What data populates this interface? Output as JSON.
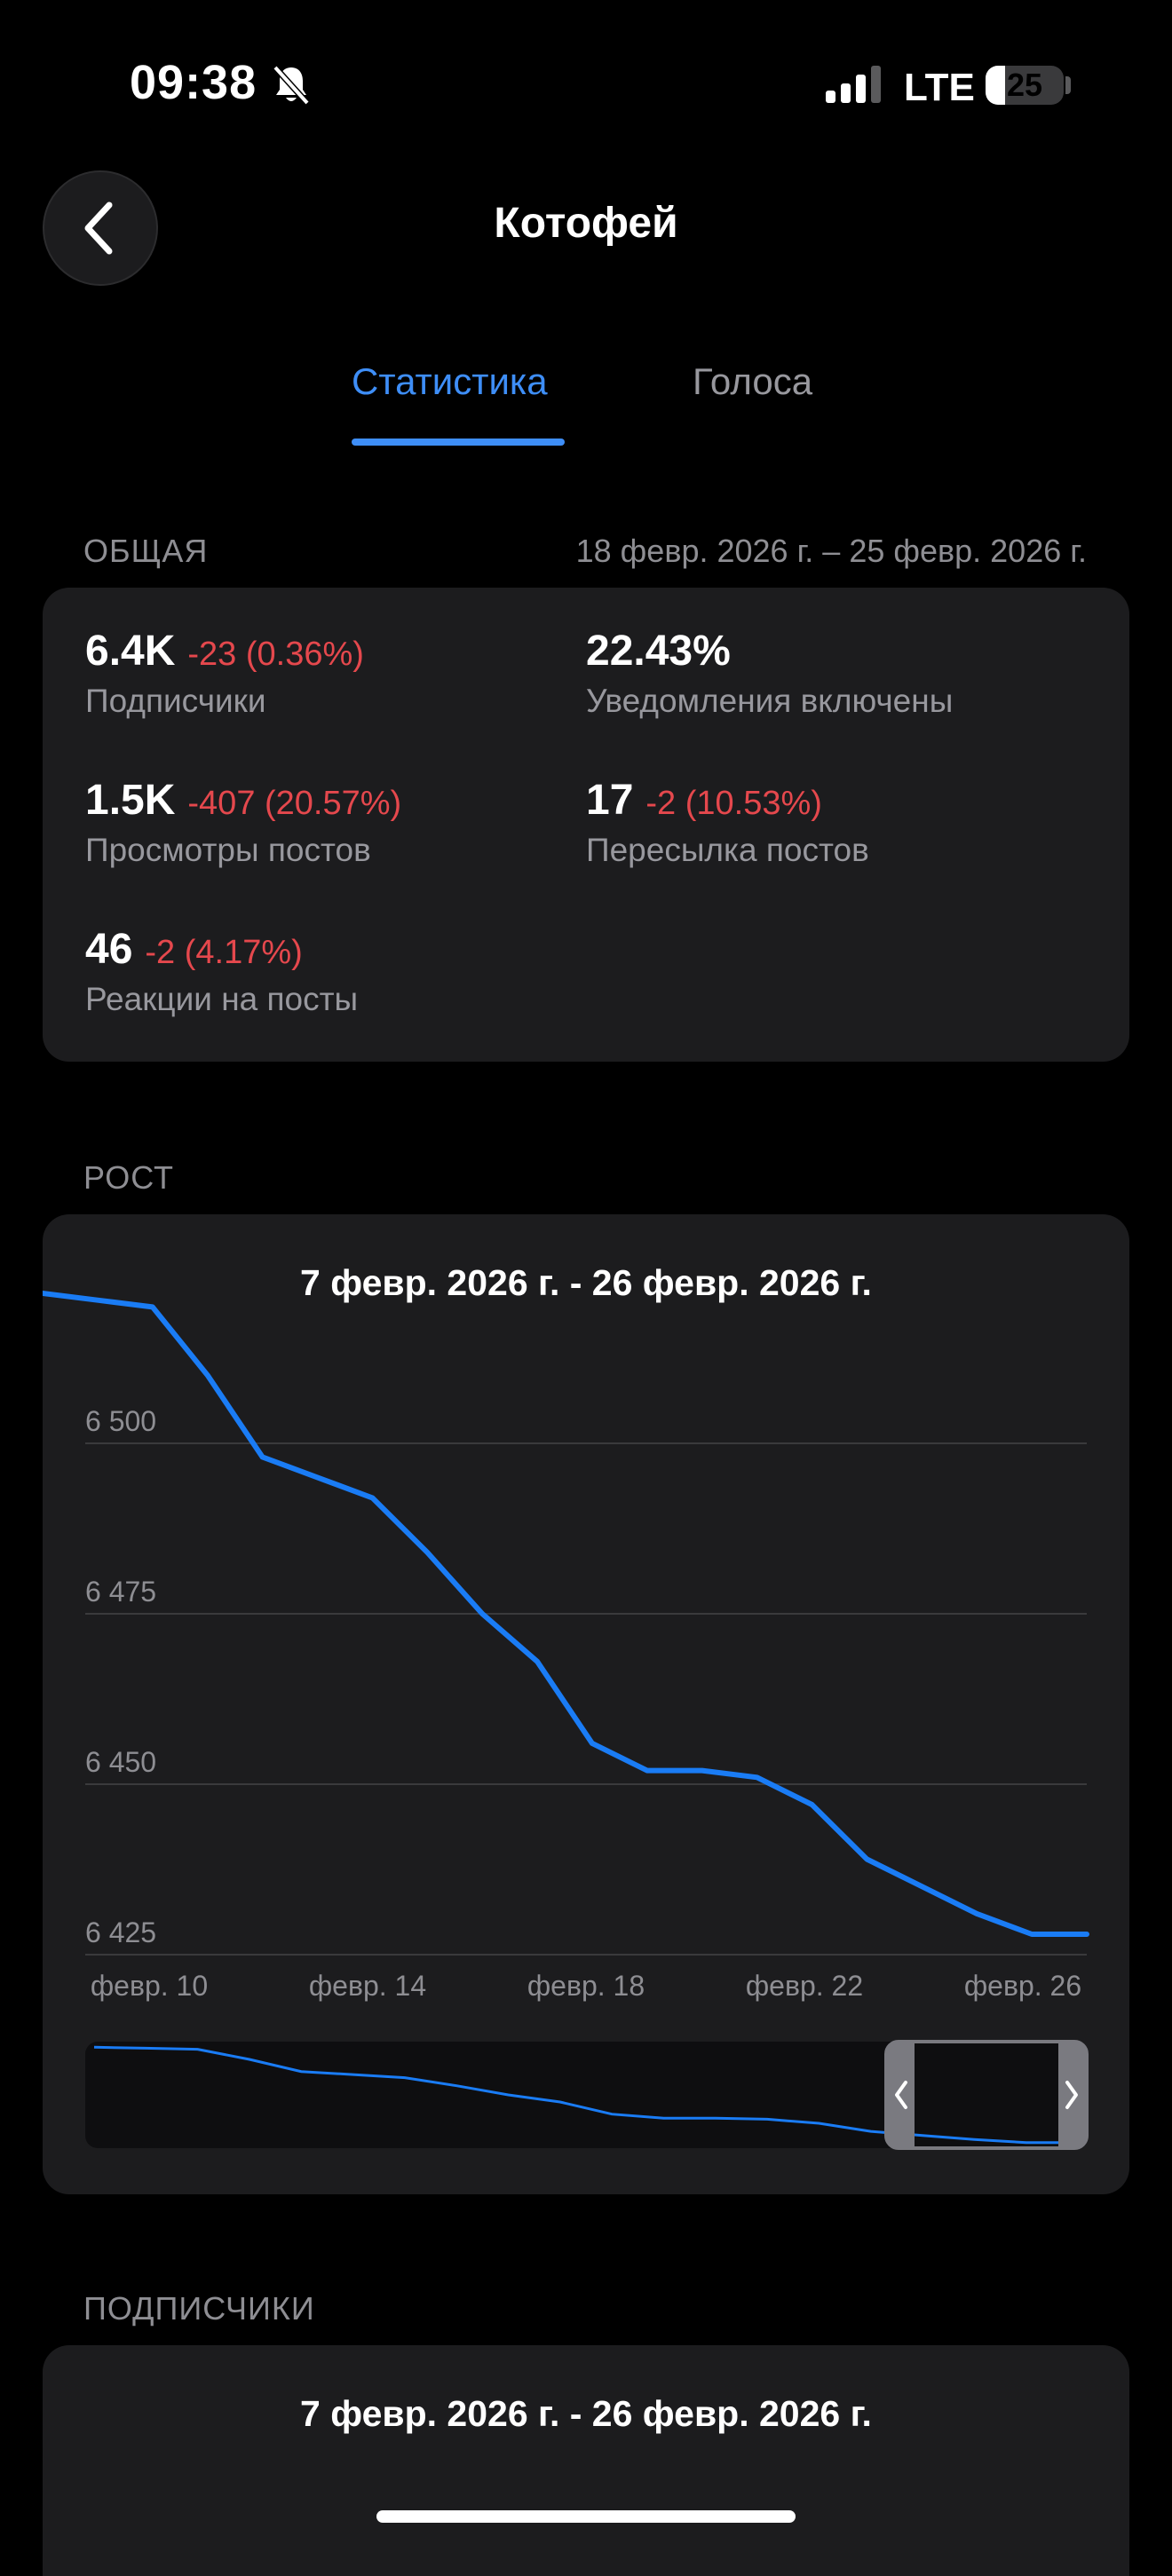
{
  "status_bar": {
    "time": "09:38",
    "network": "LTE",
    "battery": "25",
    "battery_level": 0.25
  },
  "header": {
    "title": "Котофей"
  },
  "tabs": [
    {
      "label": "Статистика",
      "active": true
    },
    {
      "label": "Голоса",
      "active": false
    }
  ],
  "overview": {
    "label": "ОБЩАЯ",
    "date_range": "18 февр. 2026 г. – 25 февр. 2026 г.",
    "metrics": [
      {
        "value": "6.4K",
        "delta": "-23 (0.36%)",
        "label": "Подписчики"
      },
      {
        "value": "22.43%",
        "delta": "",
        "label": "Уведомления включены"
      },
      {
        "value": "1.5K",
        "delta": "-407 (20.57%)",
        "label": "Просмотры постов"
      },
      {
        "value": "17",
        "delta": "-2 (10.53%)",
        "label": "Пересылка постов"
      },
      {
        "value": "46",
        "delta": "-2 (4.17%)",
        "label": "Реакции на посты"
      }
    ]
  },
  "growth": {
    "label": "РОСТ",
    "chart_title": "7 февр. 2026 г. - 26 февр. 2026 г."
  },
  "chart_data": {
    "type": "line",
    "title": "7 февр. 2026 г. - 26 февр. 2026 г.",
    "x": [
      "2026-02-07",
      "2026-02-08",
      "2026-02-09",
      "2026-02-10",
      "2026-02-11",
      "2026-02-12",
      "2026-02-13",
      "2026-02-14",
      "2026-02-15",
      "2026-02-16",
      "2026-02-17",
      "2026-02-18",
      "2026-02-19",
      "2026-02-20",
      "2026-02-21",
      "2026-02-22",
      "2026-02-23",
      "2026-02-24",
      "2026-02-25",
      "2026-02-26"
    ],
    "series": [
      {
        "values": [
          6522,
          6521,
          6520,
          6510,
          6498,
          6495,
          6492,
          6484,
          6475,
          6468,
          6456,
          6452,
          6452,
          6451,
          6447,
          6439,
          6435,
          6431,
          6428,
          6428
        ]
      }
    ],
    "y_ticks": [
      "6 500",
      "6 475",
      "6 450",
      "6 425"
    ],
    "y_tick_values": [
      6500,
      6475,
      6450,
      6425
    ],
    "x_ticks": [
      "февр. 10",
      "февр. 14",
      "февр. 18",
      "февр. 22",
      "февр. 26"
    ],
    "ylim": [
      6425,
      6525
    ],
    "grid": true,
    "line_color": "#1a7cf5"
  },
  "subscribers": {
    "label": "ПОДПИСЧИКИ",
    "chart_title": "7 февр. 2026 г. - 26 февр. 2026 г."
  },
  "colors": {
    "accent": "#3e8ef7",
    "negative": "#e5484d",
    "card": "#1c1c1e",
    "background": "#000000"
  }
}
